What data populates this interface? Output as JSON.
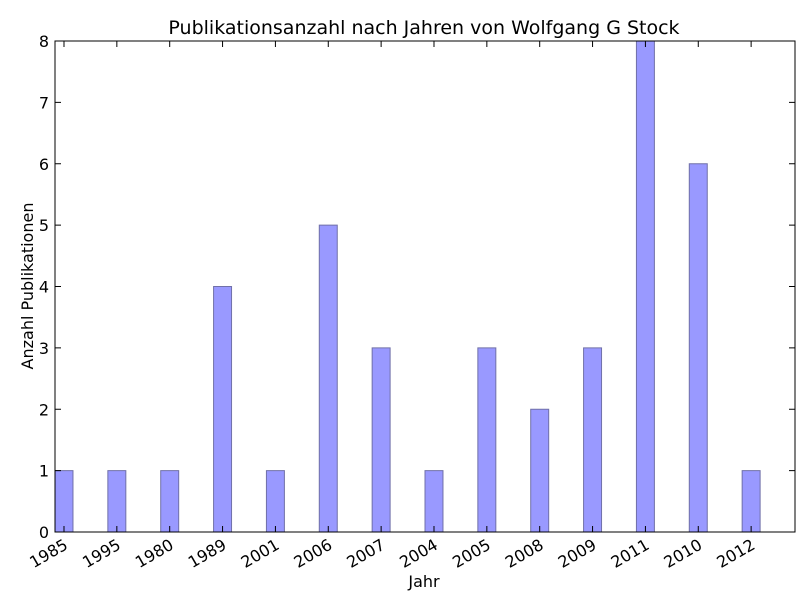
{
  "chart_data": {
    "type": "bar",
    "title": "Publikationsanzahl nach Jahren von Wolfgang G Stock",
    "xlabel": "Jahr",
    "ylabel": "Anzahl Publikationen",
    "categories": [
      "1985",
      "1995",
      "1980",
      "1989",
      "2001",
      "2006",
      "2007",
      "2004",
      "2005",
      "2008",
      "2009",
      "2011",
      "2010",
      "2012"
    ],
    "values": [
      1,
      1,
      1,
      4,
      1,
      5,
      3,
      1,
      3,
      2,
      3,
      8,
      6,
      1
    ],
    "ylim": [
      0,
      8
    ],
    "yticks": [
      "0",
      "1",
      "2",
      "3",
      "4",
      "5",
      "6",
      "7",
      "8"
    ],
    "grid": false,
    "bar_color": "#9999ff",
    "bar_edge_color": "#7070a8"
  }
}
